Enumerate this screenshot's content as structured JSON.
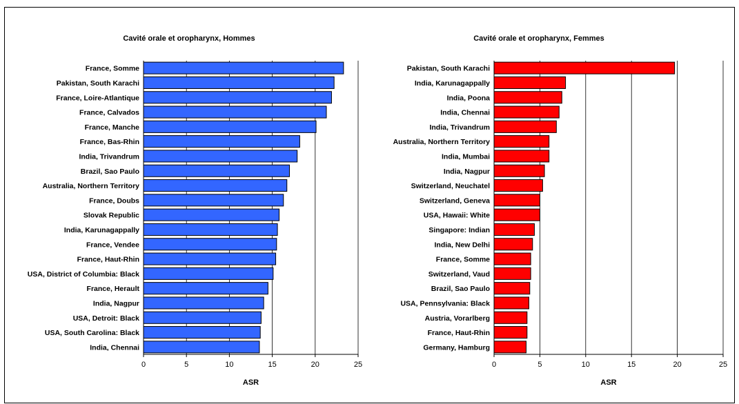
{
  "chart_data": [
    {
      "type": "bar",
      "orientation": "horizontal",
      "title": "Cavité orale et oropharynx, Hommes",
      "xlabel": "ASR",
      "ylabel": "",
      "xlim": [
        0,
        25
      ],
      "xticks": [
        0,
        5,
        10,
        15,
        20,
        25
      ],
      "grid": true,
      "bar_color": "#3366ff",
      "categories": [
        "France, Somme",
        "Pakistan, South Karachi",
        "France, Loire-Atlantique",
        "France, Calvados",
        "France, Manche",
        "France, Bas-Rhin",
        "India, Trivandrum",
        "Brazil, Sao Paulo",
        "Australia, Northern Territory",
        "France, Doubs",
        "Slovak Republic",
        "India, Karunagappally",
        "France, Vendee",
        "France, Haut-Rhin",
        "USA, District of Columbia: Black",
        "France, Herault",
        "India, Nagpur",
        "USA, Detroit: Black",
        "USA, South Carolina: Black",
        "India, Chennai"
      ],
      "values": [
        23.3,
        22.2,
        21.9,
        21.3,
        20.1,
        18.2,
        17.9,
        17.0,
        16.7,
        16.3,
        15.8,
        15.6,
        15.5,
        15.4,
        15.1,
        14.5,
        14.0,
        13.7,
        13.6,
        13.5
      ]
    },
    {
      "type": "bar",
      "orientation": "horizontal",
      "title": "Cavité orale et oropharynx, Femmes",
      "xlabel": "ASR",
      "ylabel": "",
      "xlim": [
        0,
        25
      ],
      "xticks": [
        0,
        5,
        10,
        15,
        20,
        25
      ],
      "grid": true,
      "bar_color": "#ff0000",
      "categories": [
        "Pakistan, South Karachi",
        "India, Karunagappally",
        "India, Poona",
        "India, Chennai",
        "India, Trivandrum",
        "Australia, Northern Territory",
        "India, Mumbai",
        "India, Nagpur",
        "Switzerland, Neuchatel",
        "Switzerland, Geneva",
        "USA, Hawaii: White",
        "Singapore: Indian",
        "India, New Delhi",
        "France, Somme",
        "Switzerland, Vaud",
        "Brazil, Sao Paulo",
        "USA, Pennsylvania: Black",
        "Austria, Vorarlberg",
        "France, Haut-Rhin",
        "Germany, Hamburg"
      ],
      "values": [
        19.7,
        7.8,
        7.4,
        7.1,
        6.8,
        6.0,
        6.0,
        5.5,
        5.3,
        5.0,
        5.0,
        4.4,
        4.2,
        4.0,
        4.0,
        3.9,
        3.8,
        3.6,
        3.6,
        3.5
      ]
    }
  ]
}
